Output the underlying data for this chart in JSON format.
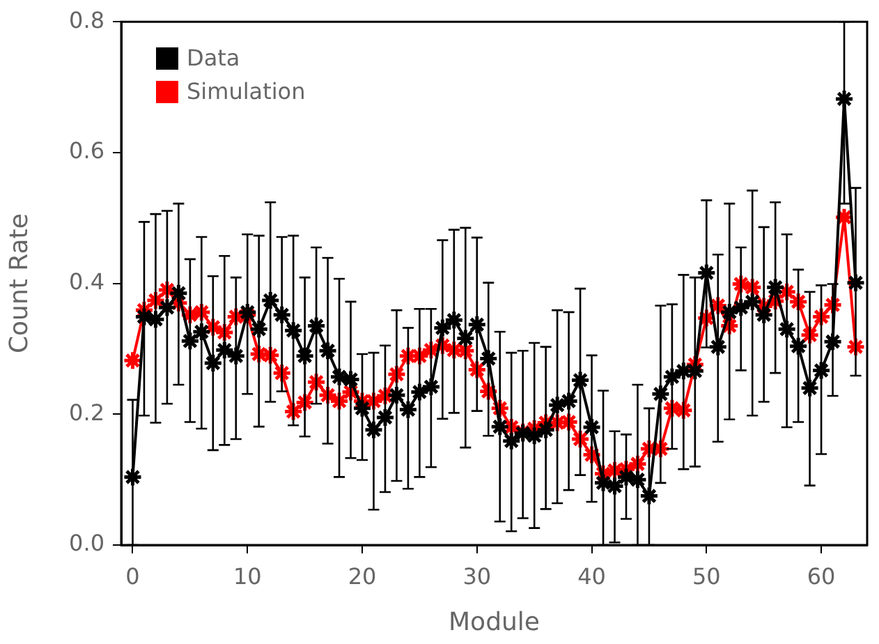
{
  "chart_data": {
    "type": "line",
    "xlabel": "Module",
    "ylabel": "Count Rate",
    "x": [
      0,
      1,
      2,
      3,
      4,
      5,
      6,
      7,
      8,
      9,
      10,
      11,
      12,
      13,
      14,
      15,
      16,
      17,
      18,
      19,
      20,
      21,
      22,
      23,
      24,
      25,
      26,
      27,
      28,
      29,
      30,
      31,
      32,
      33,
      34,
      35,
      36,
      37,
      38,
      39,
      40,
      41,
      42,
      43,
      44,
      45,
      46,
      47,
      48,
      49,
      50,
      51,
      52,
      53,
      54,
      55,
      56,
      57,
      58,
      59,
      60,
      61,
      62,
      63
    ],
    "xlim": [
      -1,
      64
    ],
    "xticks": [
      0,
      10,
      20,
      30,
      40,
      50,
      60
    ],
    "ylim": [
      0,
      0.8
    ],
    "yticks": [
      {
        "value": 0,
        "label": "0.0"
      },
      0.2,
      0.4,
      0.6,
      0.8
    ],
    "grid": false,
    "legend": "top left",
    "marker": "cross",
    "line_style": "solid",
    "series": [
      {
        "name": "Data",
        "color": "#000000",
        "values": [
          0.104,
          0.349,
          0.345,
          0.363,
          0.385,
          0.312,
          0.326,
          0.278,
          0.298,
          0.289,
          0.356,
          0.33,
          0.374,
          0.352,
          0.328,
          0.289,
          0.335,
          0.297,
          0.257,
          0.253,
          0.209,
          0.176,
          0.195,
          0.229,
          0.207,
          0.234,
          0.242,
          0.332,
          0.344,
          0.316,
          0.337,
          0.285,
          0.181,
          0.159,
          0.171,
          0.167,
          0.176,
          0.214,
          0.22,
          0.252,
          0.18,
          0.095,
          0.09,
          0.104,
          0.1,
          0.075,
          0.231,
          0.257,
          0.266,
          0.266,
          0.416,
          0.303,
          0.356,
          0.363,
          0.372,
          0.352,
          0.394,
          0.33,
          0.304,
          0.24,
          0.267,
          0.311,
          0.682,
          0.401
        ],
        "errors": [
          [
            0,
            0.222
          ],
          [
            0.198,
            0.494
          ],
          [
            0.187,
            0.506
          ],
          [
            0.216,
            0.511
          ],
          [
            0.245,
            0.522
          ],
          [
            0.188,
            0.437
          ],
          [
            0.178,
            0.471
          ],
          [
            0.145,
            0.411
          ],
          [
            0.153,
            0.442
          ],
          [
            0.162,
            0.409
          ],
          [
            0.231,
            0.475
          ],
          [
            0.181,
            0.473
          ],
          [
            0.219,
            0.524
          ],
          [
            0.235,
            0.471
          ],
          [
            0.183,
            0.473
          ],
          [
            0.166,
            0.409
          ],
          [
            0.216,
            0.455
          ],
          [
            0.155,
            0.439
          ],
          [
            0.104,
            0.407
          ],
          [
            0.133,
            0.372
          ],
          [
            0.13,
            0.292
          ],
          [
            0.054,
            0.294
          ],
          [
            0.081,
            0.305
          ],
          [
            0.098,
            0.359
          ],
          [
            0.086,
            0.332
          ],
          [
            0.104,
            0.361
          ],
          [
            0.119,
            0.361
          ],
          [
            0.193,
            0.466
          ],
          [
            0.202,
            0.482
          ],
          [
            0.149,
            0.485
          ],
          [
            0.205,
            0.47
          ],
          [
            0.167,
            0.401
          ],
          [
            0.036,
            0.326
          ],
          [
            0.021,
            0.294
          ],
          [
            0.041,
            0.297
          ],
          [
            0.026,
            0.309
          ],
          [
            0.055,
            0.303
          ],
          [
            0.064,
            0.359
          ],
          [
            0.084,
            0.356
          ],
          [
            0.107,
            0.392
          ],
          [
            0.066,
            0.29
          ],
          [
            0,
            0.236
          ],
          [
            0.004,
            0.174
          ],
          [
            0.04,
            0.169
          ],
          [
            0,
            0.245
          ],
          [
            0,
            0.209
          ],
          [
            0.095,
            0.366
          ],
          [
            0.147,
            0.368
          ],
          [
            0.116,
            0.413
          ],
          [
            0.12,
            0.409
          ],
          [
            0.302,
            0.527
          ],
          [
            0.158,
            0.444
          ],
          [
            0.192,
            0.522
          ],
          [
            0.267,
            0.455
          ],
          [
            0.198,
            0.542
          ],
          [
            0.219,
            0.486
          ],
          [
            0.263,
            0.524
          ],
          [
            0.18,
            0.475
          ],
          [
            0.188,
            0.421
          ],
          [
            0.091,
            0.387
          ],
          [
            0.139,
            0.397
          ],
          [
            0.228,
            0.399
          ],
          [
            0.522,
            0.8
          ],
          [
            0.259,
            0.546
          ]
        ]
      },
      {
        "name": "Simulation",
        "color": "#ff0000",
        "values": [
          0.282,
          0.359,
          0.374,
          0.39,
          0.37,
          0.352,
          0.356,
          0.333,
          0.325,
          0.349,
          0.352,
          0.292,
          0.29,
          0.263,
          0.204,
          0.218,
          0.249,
          0.229,
          0.22,
          0.234,
          0.22,
          0.22,
          0.228,
          0.261,
          0.289,
          0.289,
          0.298,
          0.305,
          0.298,
          0.297,
          0.268,
          0.235,
          0.209,
          0.18,
          0.173,
          0.178,
          0.187,
          0.187,
          0.188,
          0.162,
          0.138,
          0.109,
          0.114,
          0.116,
          0.124,
          0.147,
          0.147,
          0.209,
          0.206,
          0.276,
          0.347,
          0.366,
          0.335,
          0.399,
          0.394,
          0.365,
          0.373,
          0.387,
          0.372,
          0.321,
          0.349,
          0.367,
          0.501,
          0.303
        ]
      }
    ]
  }
}
